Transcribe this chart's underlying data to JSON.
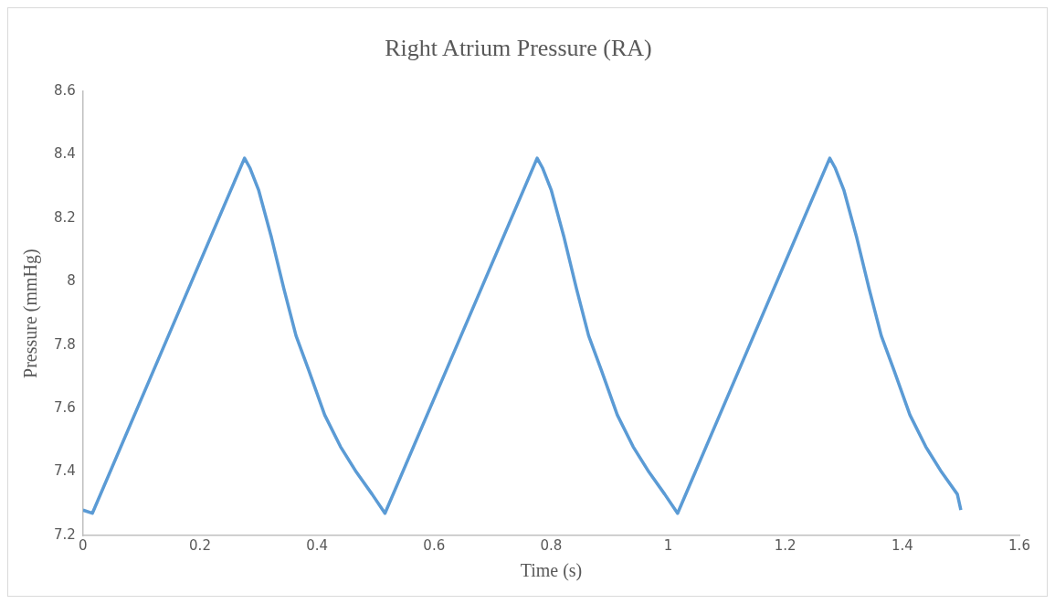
{
  "chart_data": {
    "type": "line",
    "title": "Right Atrium Pressure (RA)",
    "xlabel": "Time (s)",
    "ylabel": "Pressure (mmHg)",
    "x": [
      0,
      0.016,
      0.146,
      0.276,
      0.285,
      0.3,
      0.322,
      0.343,
      0.364,
      0.386,
      0.413,
      0.44,
      0.467,
      0.494,
      0.516,
      0.646,
      0.776,
      0.785,
      0.8,
      0.822,
      0.843,
      0.864,
      0.886,
      0.913,
      0.94,
      0.967,
      0.994,
      1.016,
      1.146,
      1.276,
      1.285,
      1.3,
      1.322,
      1.343,
      1.364,
      1.386,
      1.413,
      1.44,
      1.467,
      1.494,
      1.5
    ],
    "series": [
      {
        "color": "#5b9bd5",
        "values": [
          7.28,
          7.27,
          7.83,
          8.39,
          8.36,
          8.29,
          8.14,
          7.98,
          7.83,
          7.72,
          7.58,
          7.48,
          7.4,
          7.33,
          7.27,
          7.83,
          8.39,
          8.36,
          8.29,
          8.14,
          7.98,
          7.83,
          7.72,
          7.58,
          7.48,
          7.4,
          7.33,
          7.27,
          7.83,
          8.39,
          8.36,
          8.29,
          8.14,
          7.98,
          7.83,
          7.72,
          7.58,
          7.48,
          7.4,
          7.33,
          7.28
        ]
      }
    ],
    "xlim": [
      0,
      1.6
    ],
    "xticks": [
      0,
      0.2,
      0.4,
      0.6,
      0.8,
      1,
      1.2,
      1.4,
      1.6
    ],
    "ylim": [
      7.2,
      8.6
    ],
    "yticks": [
      7.2,
      7.4,
      7.6,
      7.8,
      8,
      8.2,
      8.4,
      8.6
    ],
    "grid": false,
    "legend": false,
    "marker": "none",
    "line_style": "solid"
  }
}
